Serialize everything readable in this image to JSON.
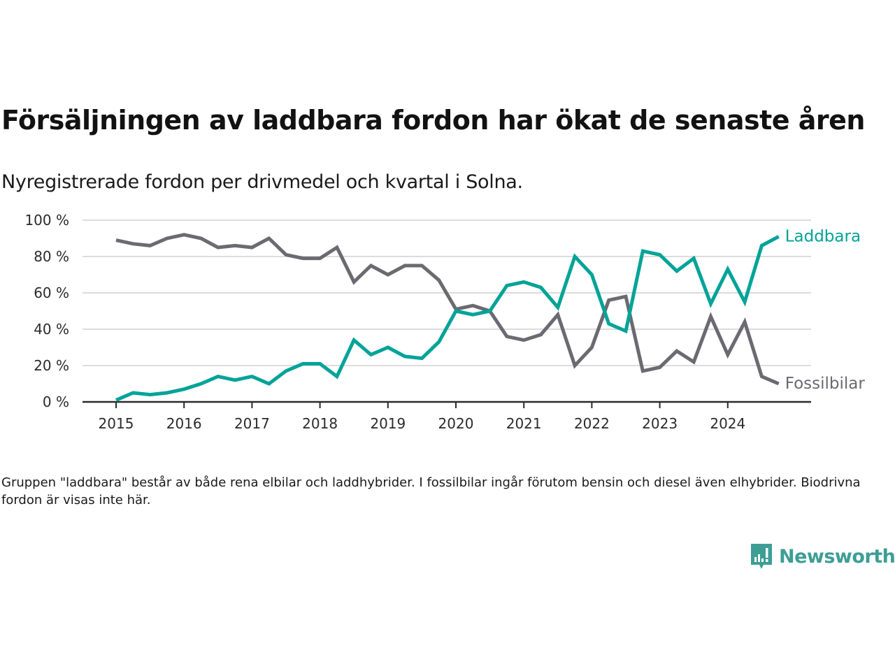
{
  "title": "Försäljningen av laddbara fordon har ökat de senaste åren",
  "subtitle": "Nyregistrerade fordon per drivmedel och kvartal i Solna.",
  "note": "Gruppen \"laddbara\" består av både rena elbilar och laddhybrider. I fossilbilar ingår förutom bensin och diesel även elhybrider. Biodrivna fordon är visas inte här.",
  "logo": {
    "text": "Newsworthy",
    "icon": "bar-chart-speech-bubble-icon",
    "color": "#3d9e96"
  },
  "chart_data": {
    "type": "line",
    "title": "Försäljningen av laddbara fordon har ökat de senaste åren",
    "subtitle": "Nyregistrerade fordon per drivmedel och kvartal i Solna.",
    "xlabel": "",
    "ylabel": "",
    "x_unit": "quarter",
    "x_start": 2015.0,
    "x_step": 0.25,
    "xticks": [
      2015,
      2016,
      2017,
      2018,
      2019,
      2020,
      2021,
      2022,
      2023,
      2024
    ],
    "xtick_labels": [
      "2015",
      "2016",
      "2017",
      "2018",
      "2019",
      "2020",
      "2021",
      "2022",
      "2023",
      "2024"
    ],
    "ylim": [
      0,
      100
    ],
    "yticks": [
      0,
      20,
      40,
      60,
      80,
      100
    ],
    "ytick_labels": [
      "0 %",
      "20 %",
      "40 %",
      "60 %",
      "80 %",
      "100 %"
    ],
    "grid": true,
    "legend": "direct-labels-right",
    "series": [
      {
        "name": "Laddbara",
        "color": "#00a398",
        "values": [
          1,
          5,
          4,
          5,
          7,
          10,
          14,
          12,
          14,
          10,
          17,
          21,
          21,
          14,
          34,
          26,
          30,
          25,
          24,
          33,
          50,
          48,
          50,
          64,
          66,
          63,
          52,
          80,
          70,
          43,
          39,
          83,
          81,
          72,
          79,
          54,
          73,
          55,
          86,
          91
        ]
      },
      {
        "name": "Fossilbilar",
        "color": "#6b6a70",
        "values": [
          89,
          87,
          86,
          90,
          92,
          90,
          85,
          86,
          85,
          90,
          81,
          79,
          79,
          85,
          66,
          75,
          70,
          75,
          75,
          67,
          51,
          53,
          50,
          36,
          34,
          37,
          48,
          20,
          30,
          56,
          58,
          17,
          19,
          28,
          22,
          47,
          26,
          44,
          14,
          10
        ]
      }
    ]
  }
}
